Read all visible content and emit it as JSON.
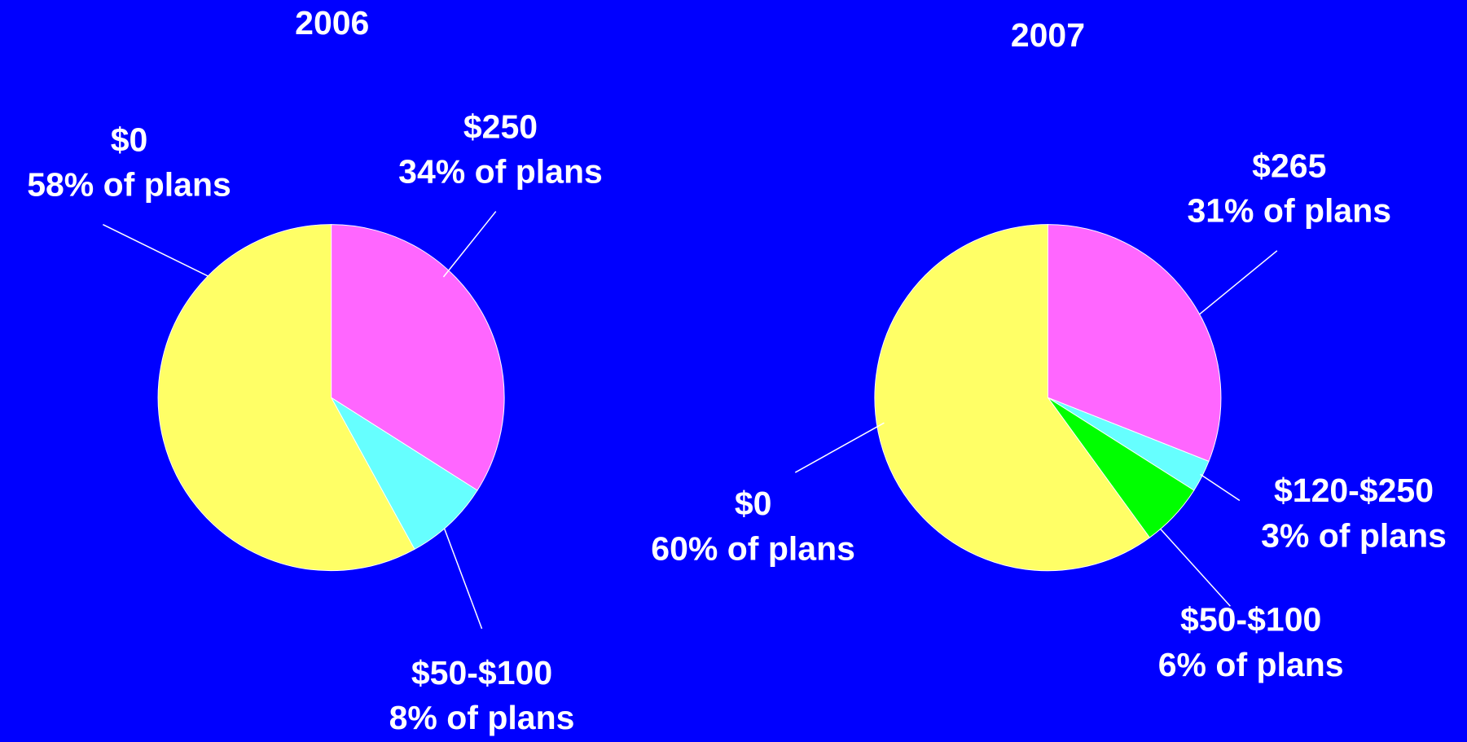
{
  "chart_data": [
    {
      "type": "pie",
      "title": "2006",
      "categories": [
        "$250",
        "$50-$100",
        "$0"
      ],
      "values": [
        34,
        8,
        58
      ],
      "value_labels": [
        "34% of plans",
        "8% of plans",
        "58% of plans"
      ],
      "colors": [
        "#ff66ff",
        "#66ffff",
        "#ffff66"
      ]
    },
    {
      "type": "pie",
      "title": "2007",
      "categories": [
        "$265",
        "$120-$250",
        "$50-$100",
        "$0"
      ],
      "values": [
        31,
        3,
        6,
        60
      ],
      "value_labels": [
        "31% of plans",
        "3% of plans",
        "6% of plans",
        "60% of plans"
      ],
      "colors": [
        "#ff66ff",
        "#66ffff",
        "#00ff00",
        "#ffff66"
      ]
    }
  ]
}
